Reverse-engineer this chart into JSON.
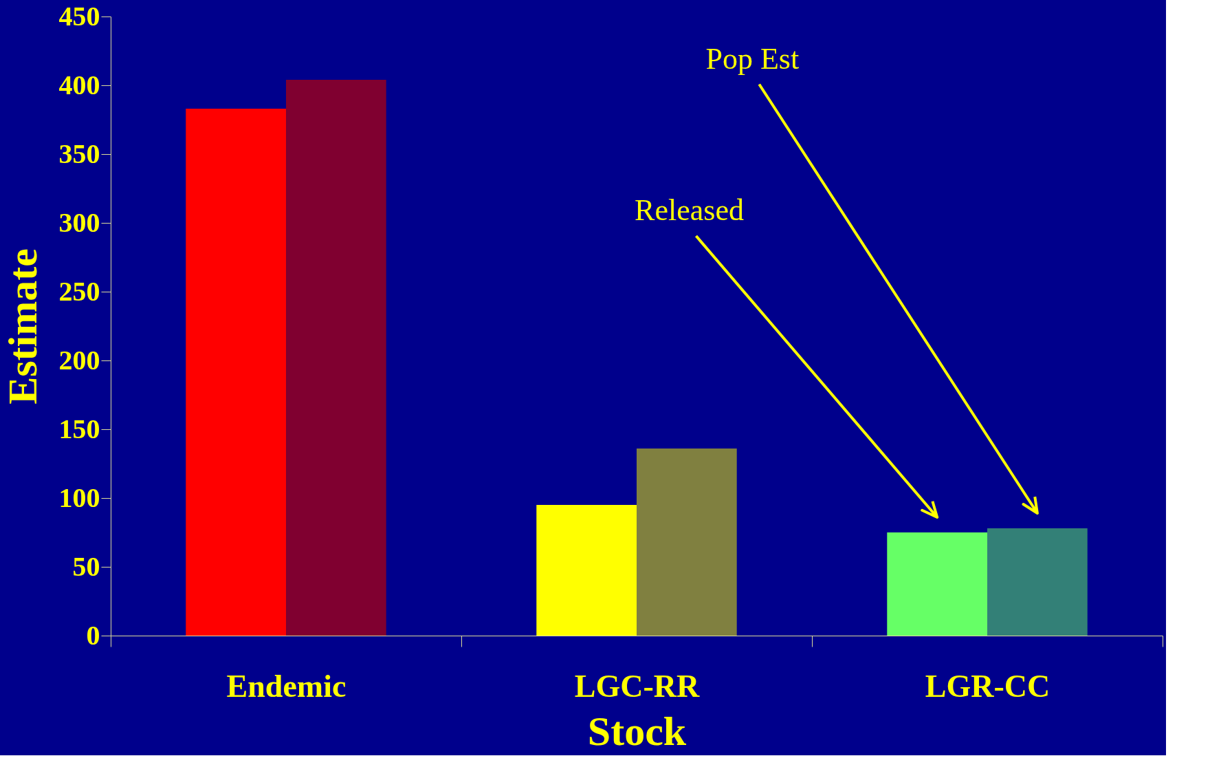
{
  "chart_data": {
    "type": "bar",
    "xlabel": "Stock",
    "ylabel": "Estimate",
    "categories": [
      "Endemic",
      "LGC-RR",
      "LGR-CC"
    ],
    "series": [
      {
        "colors": [
          "#ff0000",
          "#ffff00",
          "#66ff66"
        ],
        "values": [
          383,
          95,
          75
        ]
      },
      {
        "colors": [
          "#800030",
          "#808040",
          "#338077"
        ],
        "values": [
          404,
          136,
          78
        ]
      }
    ],
    "annotations": [
      "Released",
      "Pop Est"
    ],
    "ylim": [
      0,
      450
    ],
    "yticks": [
      0,
      50,
      100,
      150,
      200,
      250,
      300,
      350,
      400,
      450
    ],
    "grid": false
  }
}
